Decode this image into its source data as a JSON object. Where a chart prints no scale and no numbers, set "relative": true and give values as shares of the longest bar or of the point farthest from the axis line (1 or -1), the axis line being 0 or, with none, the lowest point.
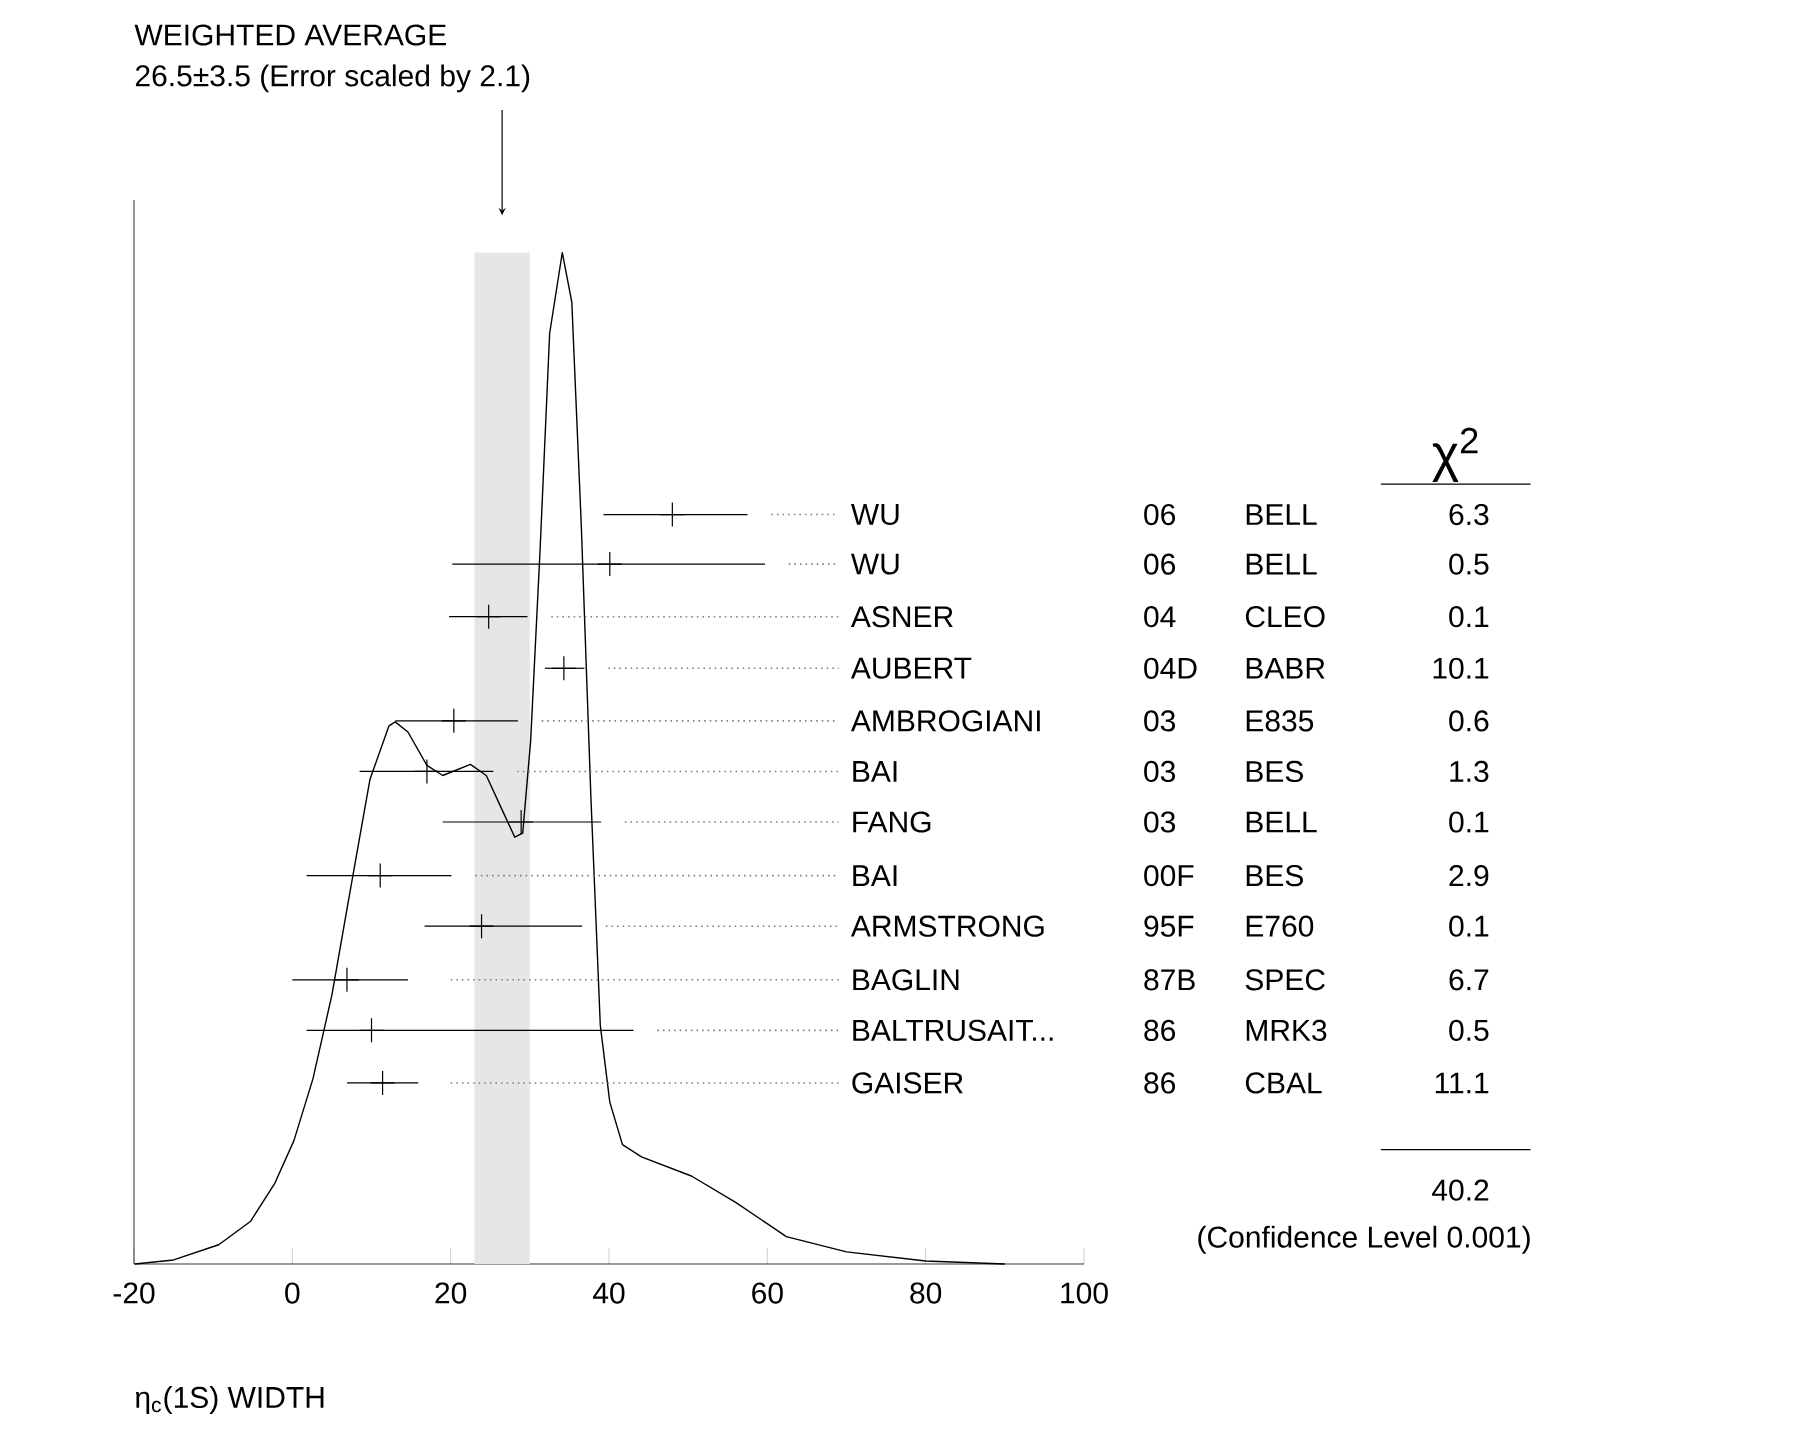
{
  "chart_data": {
    "type": "line",
    "title": "WEIGHTED AVERAGE",
    "subtitle": "26.5±3.5 (Error scaled by 2.1)",
    "xlabel": "η$_{c}$(1S) WIDTH",
    "relative": true,
    "xlim": [
      -20,
      100
    ],
    "xticks": [
      -20,
      0,
      20,
      40,
      60,
      80,
      100
    ],
    "grid": false,
    "bands": [
      {
        "axis": "x",
        "from": 23,
        "to": 30,
        "color": "#e6e6e6"
      }
    ],
    "series": [
      {
        "color": "#000000",
        "x": [
          -19.9,
          -15,
          -9.3,
          -5.3,
          -2.2,
          0.2,
          2.6,
          5.0,
          7.4,
          9.8,
          12.2,
          13.0,
          14.6,
          17.0,
          19.0,
          22.5,
          24.5,
          26.5,
          28.1,
          29.1,
          30.1,
          31.3,
          32.5,
          34.1,
          35.3,
          36.5,
          37.7,
          38.9,
          40.1,
          41.7,
          44.1,
          50.4,
          56.0,
          62.4,
          70,
          80,
          90
        ],
        "values": [
          0,
          0.004,
          0.019,
          0.042,
          0.08,
          0.122,
          0.183,
          0.266,
          0.373,
          0.479,
          0.532,
          0.536,
          0.526,
          0.493,
          0.483,
          0.494,
          0.483,
          0.449,
          0.422,
          0.426,
          0.517,
          0.707,
          0.92,
          1.0,
          0.951,
          0.73,
          0.464,
          0.236,
          0.16,
          0.118,
          0.106,
          0.087,
          0.061,
          0.027,
          0.012,
          0.003,
          0
        ]
      },
      {
        "type": "scatter",
        "marker": "cross",
        "color": "#000000",
        "x": [
          48.0,
          40.1,
          24.8,
          34.3,
          20.4,
          17.0,
          28.9,
          11.1,
          23.9,
          6.9,
          10.0,
          11.4
        ],
        "values": [
          0.741,
          0.692,
          0.64,
          0.589,
          0.537,
          0.487,
          0.437,
          0.384,
          0.334,
          0.281,
          0.231,
          0.179
        ],
        "xerrors": [
          [
            39.3,
            57.5
          ],
          [
            20.2,
            59.7
          ],
          [
            19.8,
            29.7
          ],
          [
            31.9,
            36.9
          ],
          [
            13.0,
            28.5
          ],
          [
            8.5,
            25.4
          ],
          [
            19.0,
            39.0
          ],
          [
            1.8,
            20.1
          ],
          [
            16.7,
            36.6
          ],
          [
            0,
            14.6
          ],
          [
            1.8,
            43.1
          ],
          [
            6.9,
            15.9
          ]
        ]
      }
    ],
    "annotations": [
      "WU",
      "06",
      "BELL",
      "6.3",
      "WU",
      "06",
      "BELL",
      "0.5",
      "ASNER",
      "04",
      "CLEO",
      "0.1",
      "AUBERT",
      "04D",
      "BABR",
      "10.1",
      "AMBROGIANI",
      "03",
      "E835",
      "0.6",
      "BAI",
      "03",
      "BES",
      "1.3",
      "FANG",
      "03",
      "BELL",
      "0.1",
      "BAI",
      "00F",
      "BES",
      "2.9",
      "ARMSTRONG",
      "95F",
      "E760",
      "0.1",
      "BAGLIN",
      "87B",
      "SPEC",
      "6.7",
      "BALTRUSAIT...",
      "86",
      "MRK3",
      "0.5",
      "GAISER",
      "86",
      "CBAL",
      "11.1",
      "χ$^{2}$",
      "40.2",
      "(Confidence Level  0.001)"
    ]
  }
}
